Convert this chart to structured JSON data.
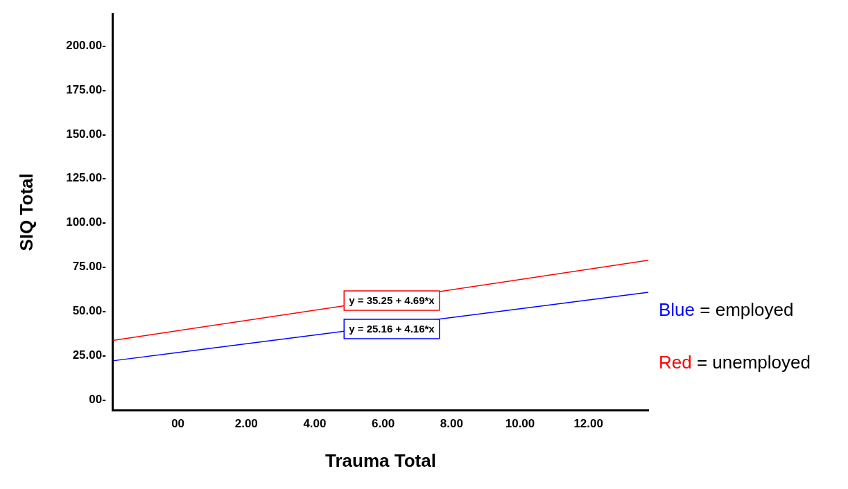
{
  "chart_data": {
    "type": "line",
    "xlabel": "Trauma Total",
    "ylabel": "SIQ Total",
    "xlim": [
      -1.9,
      13.75
    ],
    "ylim": [
      -6,
      218
    ],
    "xticks": [
      {
        "value": 0,
        "label": "00"
      },
      {
        "value": 2,
        "label": "2.00"
      },
      {
        "value": 4,
        "label": "4.00"
      },
      {
        "value": 6,
        "label": "6.00"
      },
      {
        "value": 8,
        "label": "8.00"
      },
      {
        "value": 10,
        "label": "10.00"
      },
      {
        "value": 12,
        "label": "12.00"
      }
    ],
    "yticks": [
      {
        "value": 0,
        "label": "00-"
      },
      {
        "value": 25,
        "label": "25.00-"
      },
      {
        "value": 50,
        "label": "50.00-"
      },
      {
        "value": 75,
        "label": "75.00-"
      },
      {
        "value": 100,
        "label": "100.00-"
      },
      {
        "value": 125,
        "label": "125.00-"
      },
      {
        "value": 150,
        "label": "150.00-"
      },
      {
        "value": 175,
        "label": "175.00-"
      },
      {
        "value": 200,
        "label": "200.00-"
      }
    ],
    "x": [
      -1.9,
      13.75
    ],
    "series": [
      {
        "name": "Blue = employed",
        "color": "#0000ff",
        "values": [
          22,
          60.7
        ]
      },
      {
        "name": "Red = unemployed",
        "color": "#ff0000",
        "values": [
          33.5,
          78.8
        ]
      }
    ],
    "annotations": [
      {
        "text": "y = 25.16 + 4.16*x",
        "x": 6.25,
        "y": 40
      },
      {
        "text": "y = 35.25 + 4.69*x",
        "x": 6.25,
        "y": 56
      }
    ],
    "grid": false,
    "legend": "right",
    "marker": "none",
    "line_style": "solid"
  }
}
